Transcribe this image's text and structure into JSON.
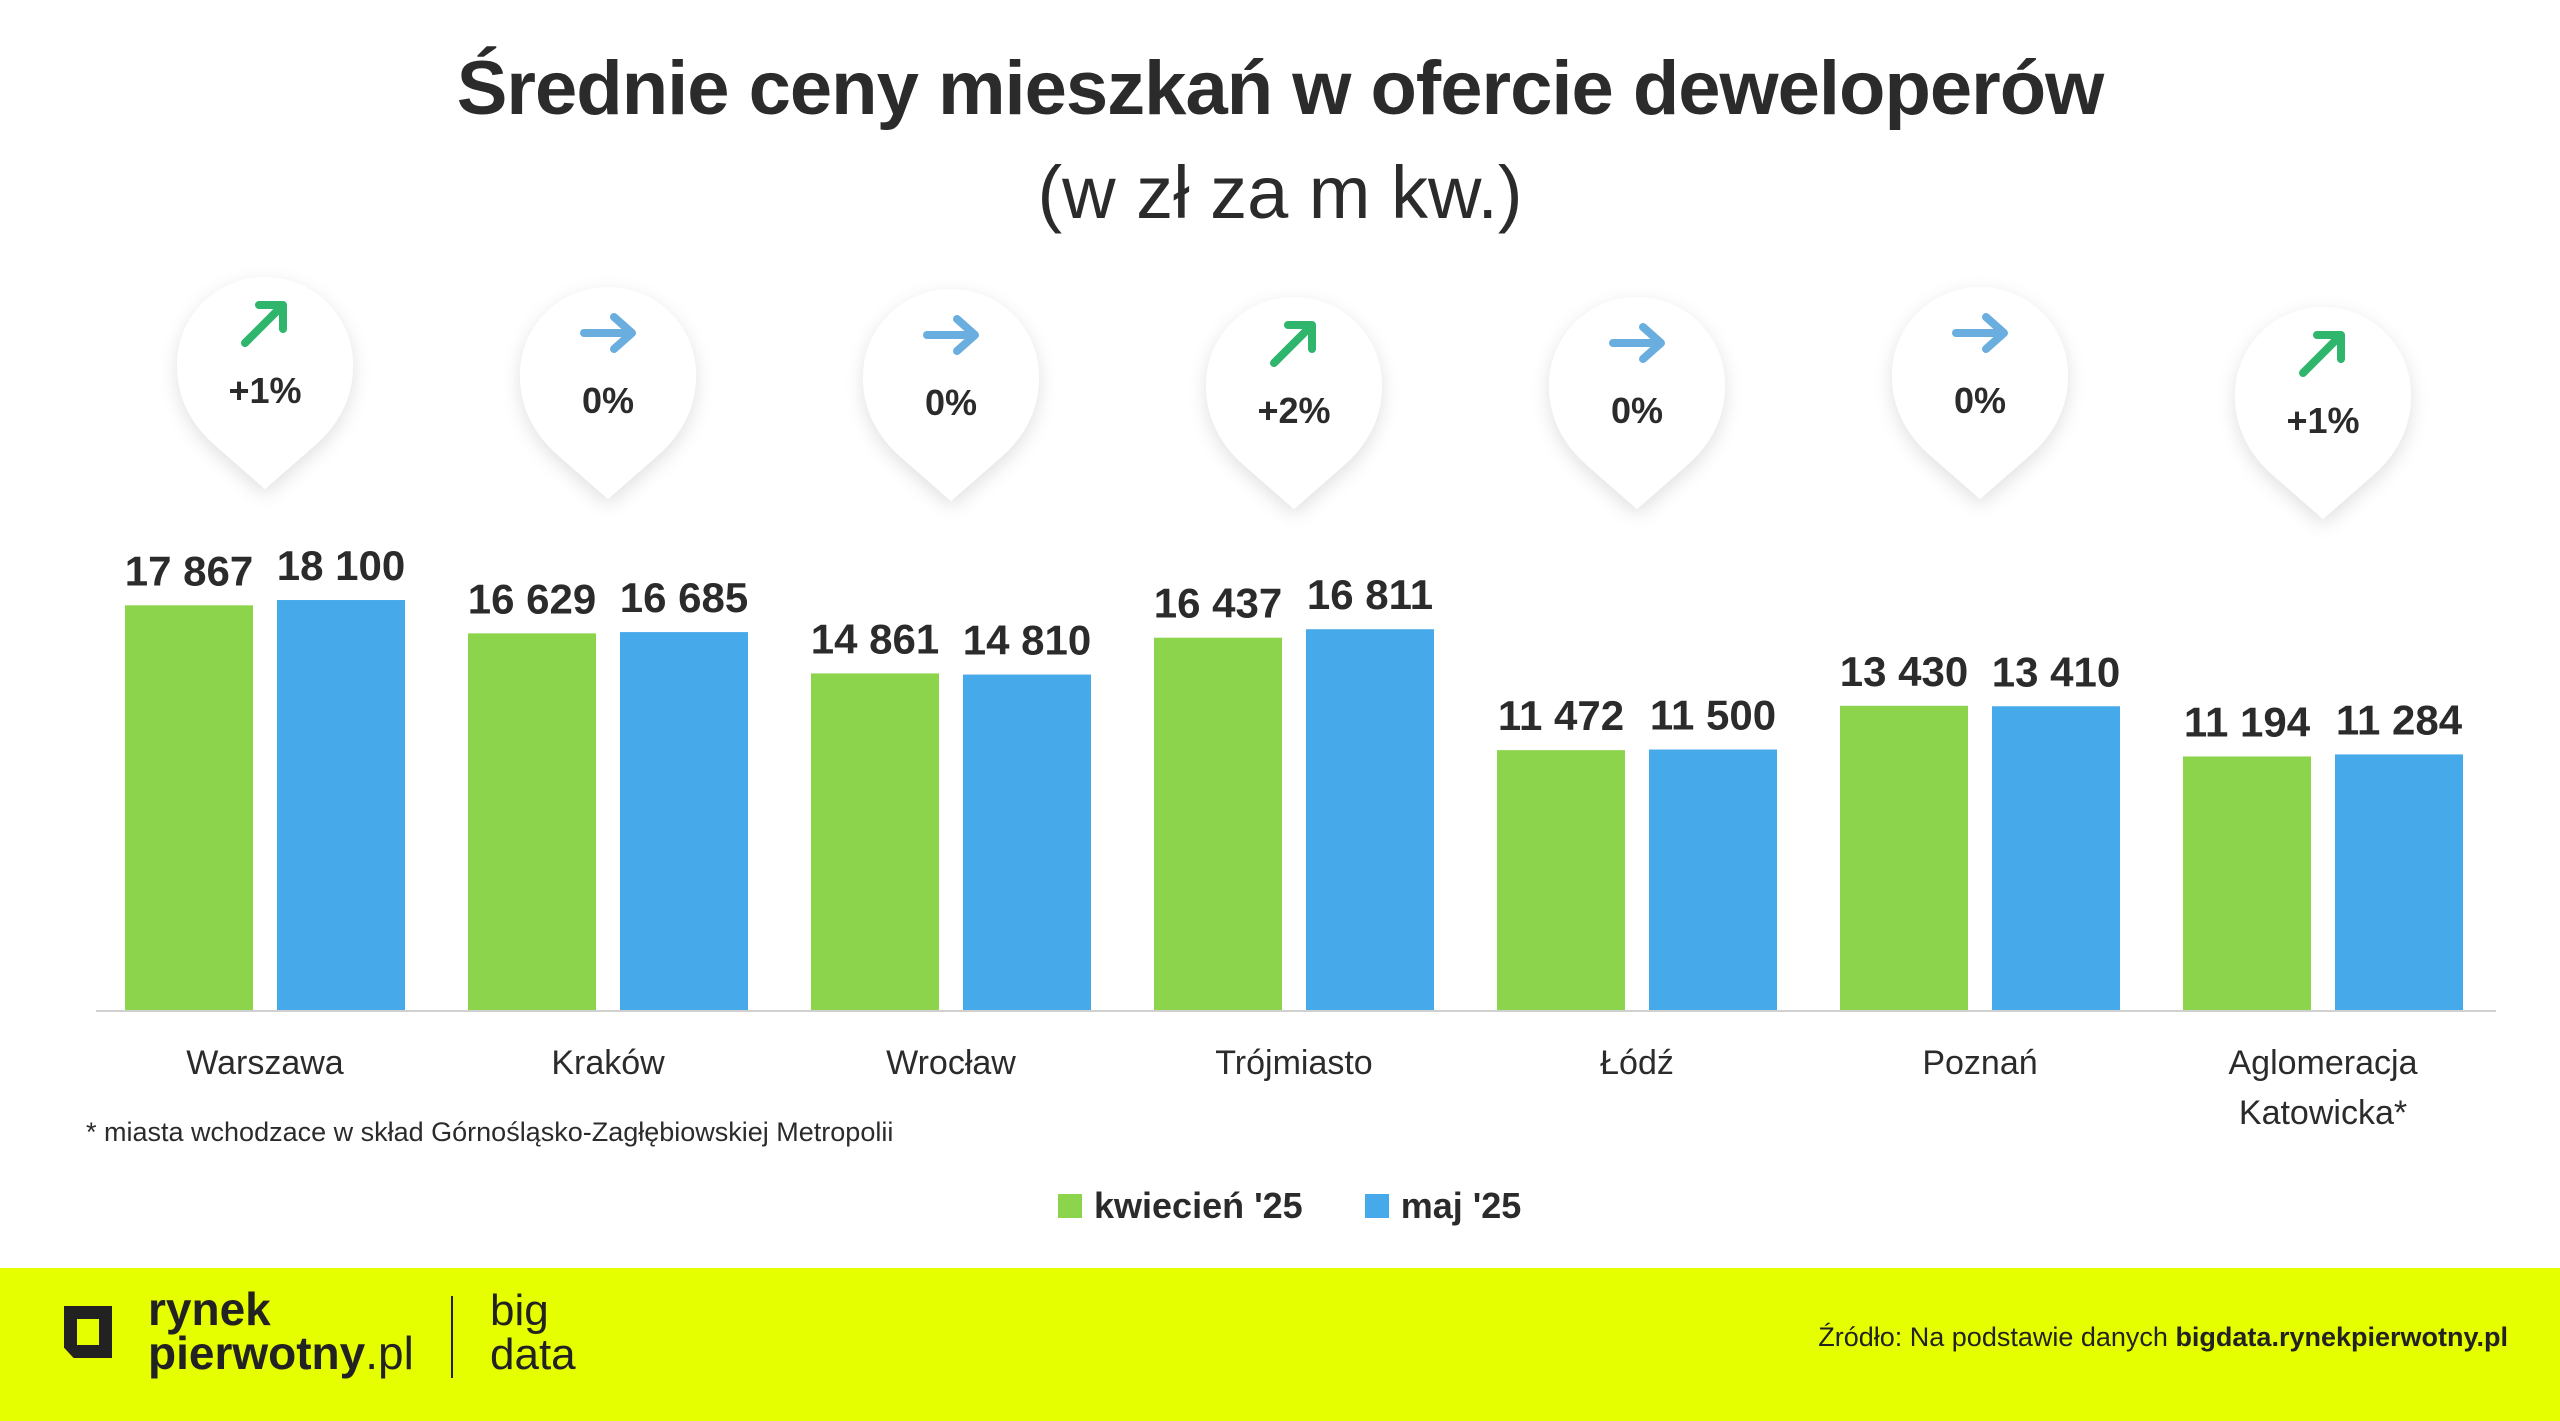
{
  "title": "Średnie ceny mieszkań w ofercie deweloperów",
  "subtitle": "(w zł za m kw.)",
  "chart_data": {
    "type": "bar",
    "categories": [
      "Warszawa",
      "Kraków",
      "Wrocław",
      "Trójmiasto",
      "Łódź",
      "Poznań",
      "Aglomeracja Katowicka*"
    ],
    "series": [
      {
        "name": "kwiecień '25",
        "color": "#8cd44c",
        "values": [
          17867,
          16629,
          14861,
          16437,
          11472,
          13430,
          11194
        ],
        "labels": [
          "17 867",
          "16 629",
          "14 861",
          "16 437",
          "11 472",
          "13 430",
          "11 194"
        ]
      },
      {
        "name": "maj '25",
        "color": "#46a9ea",
        "values": [
          18100,
          16685,
          14810,
          16811,
          11500,
          13410,
          11284
        ],
        "labels": [
          "18 100",
          "16 685",
          "14 810",
          "16 811",
          "11 500",
          "13 410",
          "11 284"
        ]
      }
    ],
    "changes": [
      {
        "text": "+1%",
        "direction": "up"
      },
      {
        "text": "0%",
        "direction": "flat"
      },
      {
        "text": "0%",
        "direction": "flat"
      },
      {
        "text": "+2%",
        "direction": "up"
      },
      {
        "text": "0%",
        "direction": "flat"
      },
      {
        "text": "0%",
        "direction": "flat"
      },
      {
        "text": "+1%",
        "direction": "up"
      }
    ],
    "colors": {
      "up": "#2fb56c",
      "flat": "#6aaee0",
      "axis": "#d0d0d0"
    },
    "ylim": [
      0,
      18100
    ],
    "xlabel": "",
    "ylabel": ""
  },
  "footnote": "* miasta wchodzace w skład Górnośląsko-Zagłębiowskiej Metropolii",
  "legend": [
    {
      "label": "kwiecień '25",
      "color": "#8cd44c"
    },
    {
      "label": "maj '25",
      "color": "#46a9ea"
    }
  ],
  "footer": {
    "logo_line1": "rynek",
    "logo_line2_bold": "pierwotny",
    "logo_line2_light": ".pl",
    "logo_big": "big",
    "logo_data": "data",
    "source_prefix": "Źródło: Na podstawie danych ",
    "source_bold": "bigdata.rynekpierwotny.pl",
    "background": "#e6ff00"
  }
}
